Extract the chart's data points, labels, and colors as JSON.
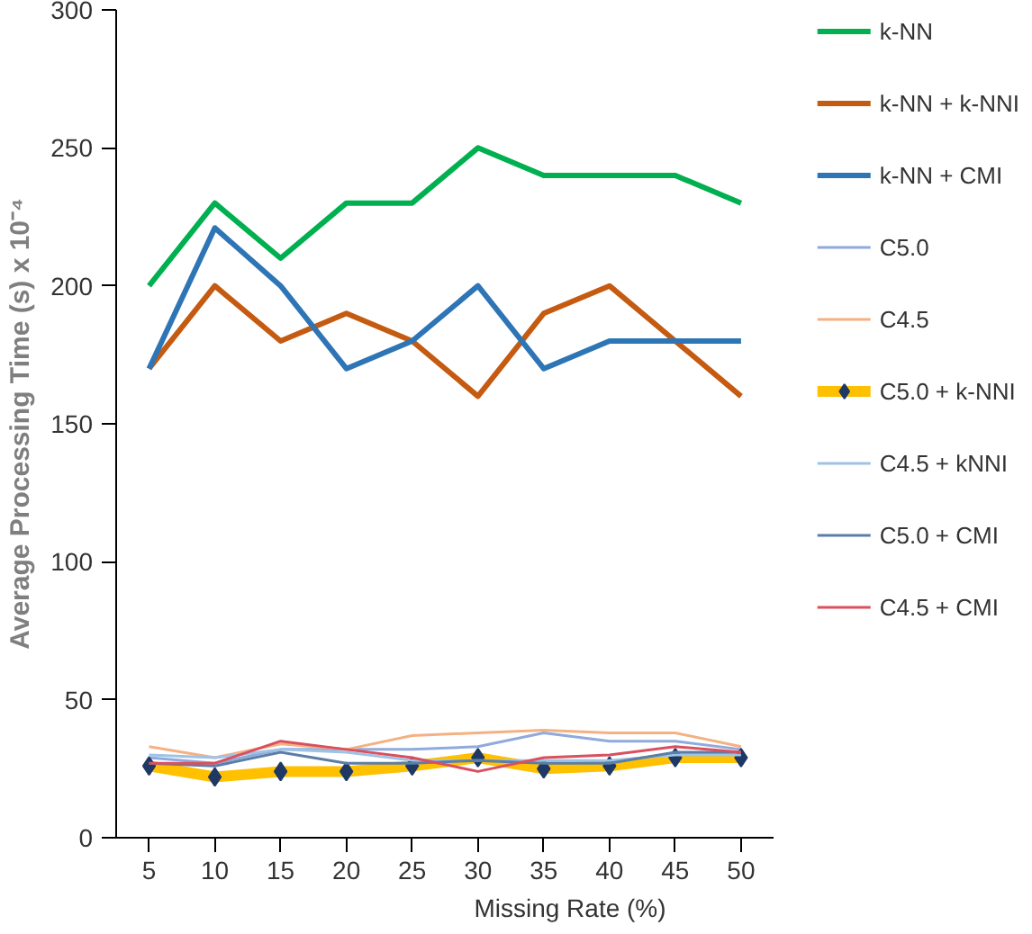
{
  "chart_data": {
    "type": "line",
    "xlabel": "Missing Rate (%)",
    "ylabel": "Average Processing Time (s) x 10⁻⁴",
    "categories": [
      "5",
      "10",
      "15",
      "20",
      "25",
      "30",
      "35",
      "40",
      "45",
      "50"
    ],
    "ylim": [
      0,
      300
    ],
    "yticks": [
      0,
      50,
      100,
      150,
      200,
      250,
      300
    ],
    "grid": false,
    "legend": "right",
    "marker": "none",
    "line_style": "solid",
    "series": [
      {
        "name": "k-NN",
        "color": "#00b050",
        "values": [
          200,
          230,
          210,
          230,
          230,
          250,
          240,
          240,
          240,
          230
        ]
      },
      {
        "name": "k-NN + k-NNI",
        "color": "#c55a11",
        "values": [
          170,
          200,
          180,
          190,
          180,
          160,
          190,
          200,
          180,
          160
        ]
      },
      {
        "name": "k-NN + CMI",
        "color": "#2e75b6",
        "values": [
          170,
          221,
          200,
          170,
          180,
          200,
          170,
          180,
          180,
          180
        ]
      },
      {
        "name": "C5.0",
        "color": "#8faadc",
        "values": [
          29,
          27,
          32,
          32,
          32,
          33,
          38,
          35,
          35,
          32
        ]
      },
      {
        "name": "C4.5",
        "color": "#f4b183",
        "values": [
          33,
          29,
          34,
          32,
          37,
          38,
          39,
          38,
          38,
          33
        ]
      },
      {
        "name": "C5.0 + k-NNI",
        "color": "#ffc000",
        "marker": "diamond",
        "values": [
          26,
          22,
          24,
          24,
          26,
          29,
          25,
          26,
          29,
          29
        ]
      },
      {
        "name": "C4.5 + kNNI",
        "color": "#9dc3e6",
        "values": [
          30,
          29,
          32,
          31,
          28,
          28,
          28,
          28,
          30,
          30
        ]
      },
      {
        "name": "C5.0 + CMI",
        "color": "#5b7ea8",
        "values": [
          27,
          26,
          31,
          27,
          27,
          28,
          27,
          27,
          31,
          31
        ]
      },
      {
        "name": "C4.5 + CMI",
        "color": "#d9505e",
        "values": [
          27,
          27,
          35,
          32,
          29,
          24,
          29,
          30,
          33,
          31
        ]
      }
    ]
  }
}
